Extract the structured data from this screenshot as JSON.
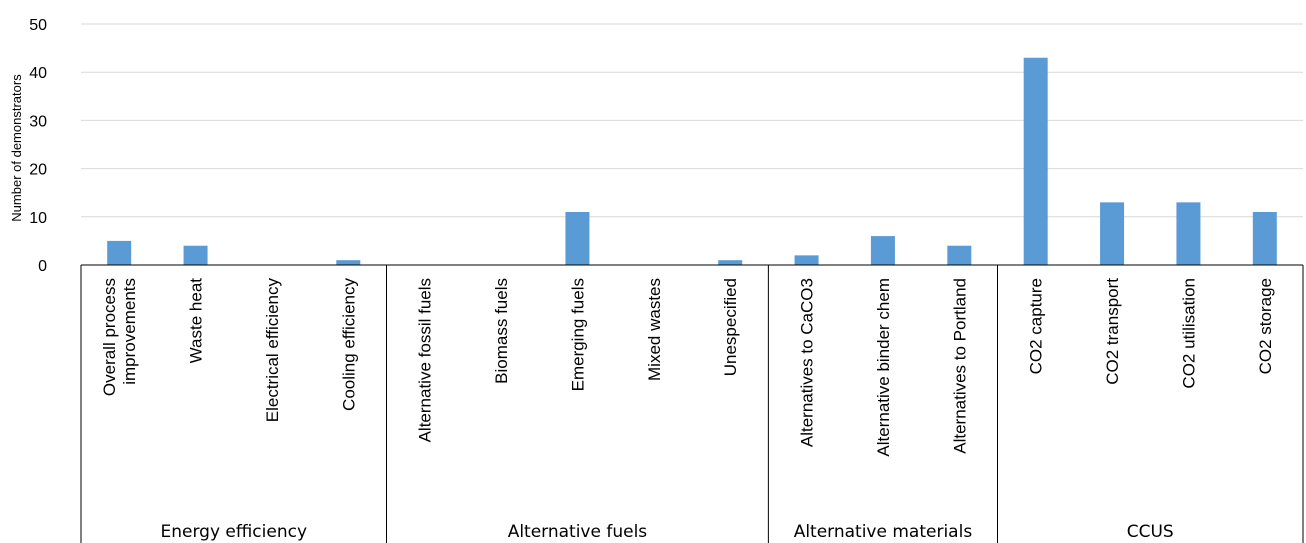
{
  "chart_data": {
    "type": "bar",
    "title": "",
    "xlabel": "",
    "ylabel": "Number of demonstrators",
    "ylim": [
      0,
      50
    ],
    "yticks": [
      0,
      10,
      20,
      30,
      40,
      50
    ],
    "grid": true,
    "bar_color": "#5b9bd5",
    "categories": [
      [
        "Overall process",
        "improvements"
      ],
      [
        "Waste heat"
      ],
      [
        "Electrical efficiency"
      ],
      [
        "Cooling efficiency"
      ],
      [
        "Alternative fossil fuels"
      ],
      [
        "Biomass fuels"
      ],
      [
        "Emerging fuels"
      ],
      [
        "Mixed wastes"
      ],
      [
        "Unespecified"
      ],
      [
        "Alternatives to CaCO3"
      ],
      [
        "Alternative binder chem"
      ],
      [
        "Alternatives to Portland"
      ],
      [
        "CO2 capture"
      ],
      [
        "CO2 transport"
      ],
      [
        "CO2 utilisation"
      ],
      [
        "CO2 storage"
      ]
    ],
    "values": [
      5,
      4,
      0,
      1,
      0,
      0,
      11,
      0,
      1,
      2,
      6,
      4,
      43,
      13,
      13,
      11
    ],
    "groups": [
      {
        "label": "Energy efficiency",
        "count": 4
      },
      {
        "label": "Alternative fuels",
        "count": 5
      },
      {
        "label": "Alternative materials",
        "count": 3
      },
      {
        "label": "CCUS",
        "count": 4
      }
    ]
  }
}
